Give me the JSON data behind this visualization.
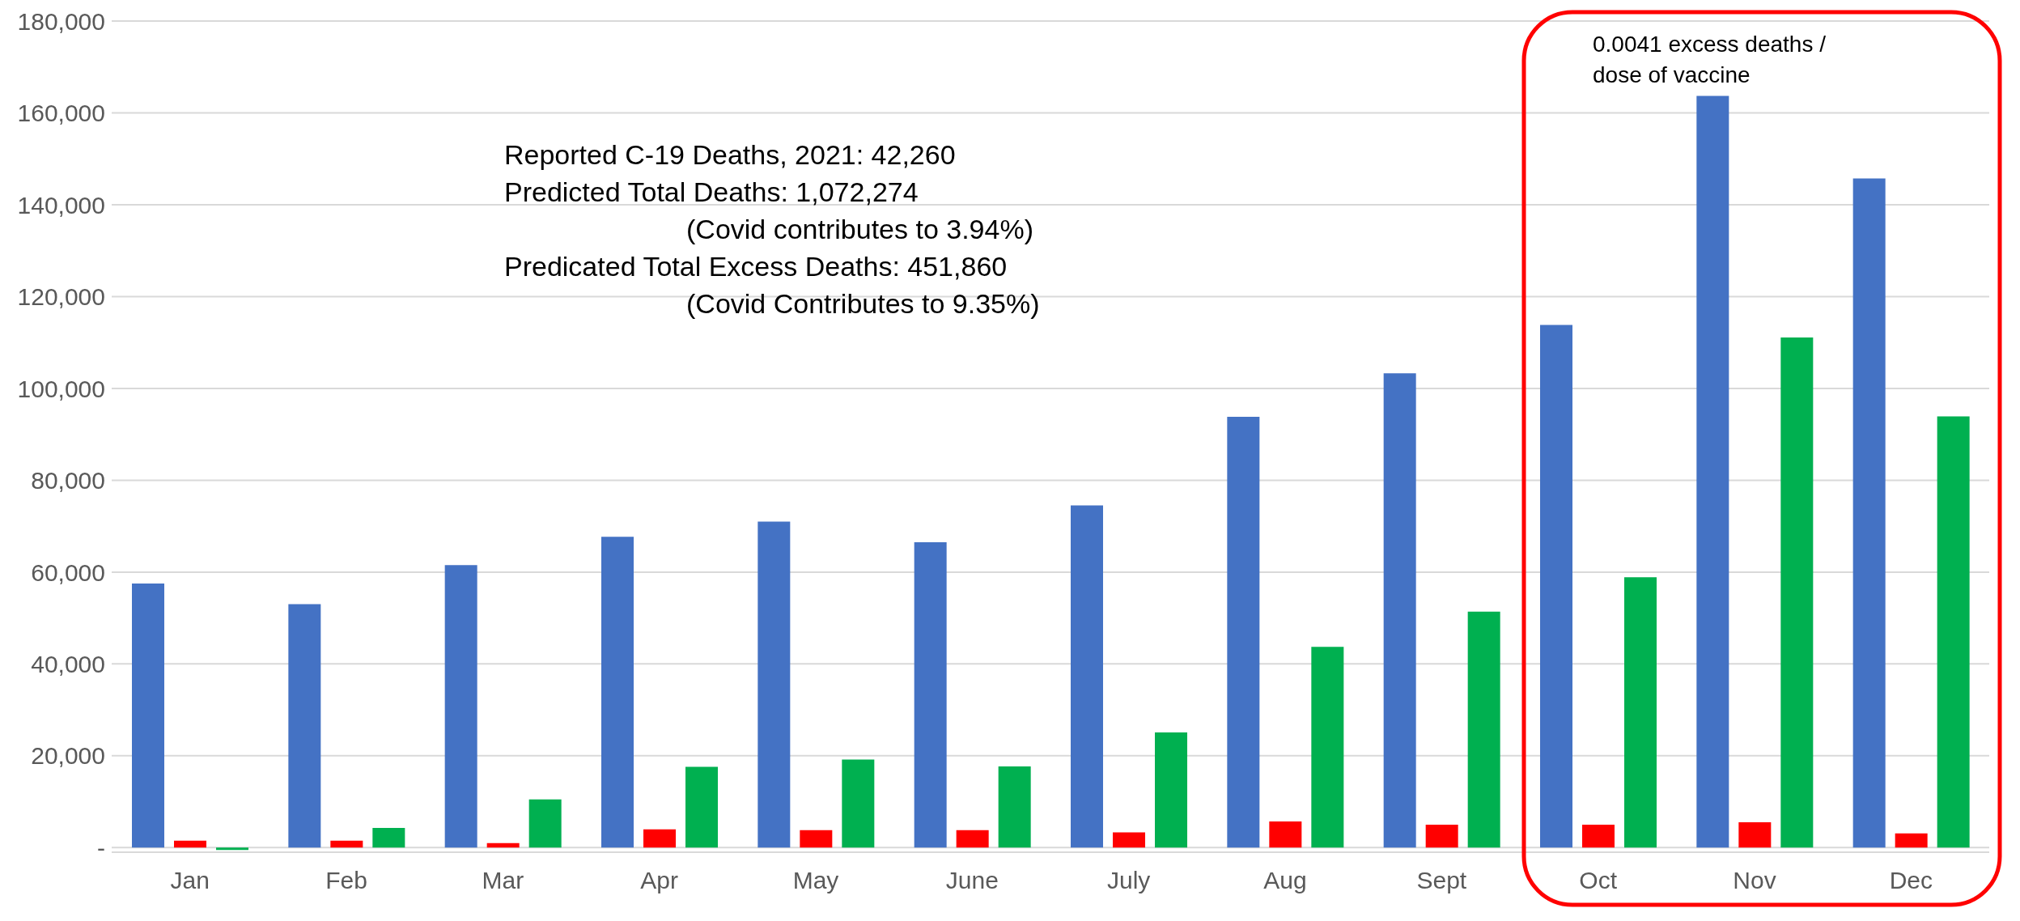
{
  "chart_data": {
    "type": "bar",
    "categories": [
      "Jan",
      "Feb",
      "Mar",
      "Apr",
      "May",
      "June",
      "July",
      "Aug",
      "Sept",
      "Oct",
      "Nov",
      "Dec"
    ],
    "series": [
      {
        "color": "#4472c4",
        "values": [
          57500,
          53000,
          61500,
          67700,
          71000,
          66500,
          74500,
          93800,
          103300,
          113800,
          163700,
          145700
        ]
      },
      {
        "color": "#ff0000",
        "values": [
          1500,
          1500,
          1000,
          4000,
          3800,
          3800,
          3300,
          5700,
          5000,
          5000,
          5500,
          3100
        ]
      },
      {
        "color": "#00b050",
        "values": [
          -500,
          4300,
          10500,
          17600,
          19200,
          17700,
          25100,
          43700,
          51400,
          58900,
          111100,
          93900
        ]
      }
    ],
    "ylim": [
      -1000,
      180000
    ],
    "yticks": [
      {
        "value": 0,
        "label": "-"
      },
      {
        "value": 20000,
        "label": "20,000"
      },
      {
        "value": 40000,
        "label": "40,000"
      },
      {
        "value": 60000,
        "label": "60,000"
      },
      {
        "value": 80000,
        "label": "80,000"
      },
      {
        "value": 100000,
        "label": "100,000"
      },
      {
        "value": 120000,
        "label": "120,000"
      },
      {
        "value": 140000,
        "label": "140,000"
      },
      {
        "value": 160000,
        "label": "160,000"
      },
      {
        "value": 180000,
        "label": "180,000"
      }
    ],
    "grid": "y",
    "annotations": [
      "Reported C-19 Deaths, 2021: 42,260",
      "Predicted Total Deaths: 1,072,274",
      "(Covid contributes to 3.94%)",
      "Predicated Total Excess Deaths: 451,860",
      "(Covid Contributes to 9.35%)",
      "0.0041 excess deaths / dose of vaccine"
    ]
  }
}
